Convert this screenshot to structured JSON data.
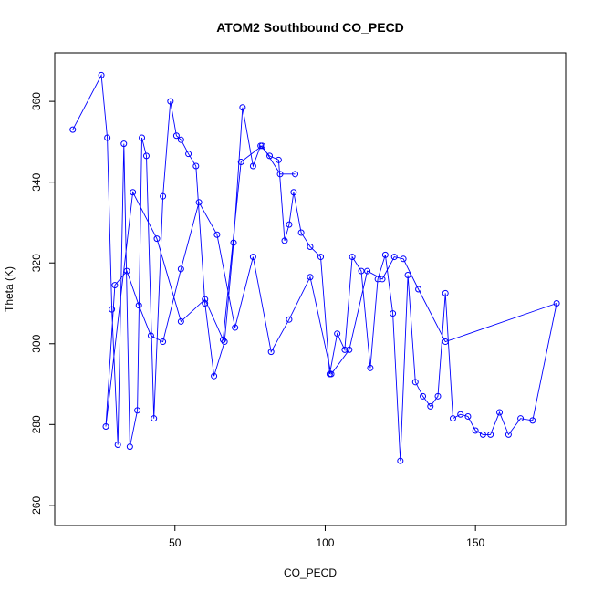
{
  "chart_data": {
    "type": "line",
    "title": "ATOM2 Southbound CO_PECD",
    "xlabel": "CO_PECD",
    "ylabel": "Theta (K)",
    "xlim": [
      10,
      180
    ],
    "ylim": [
      255,
      372
    ],
    "x_ticks": [
      50,
      100,
      150
    ],
    "y_ticks": [
      260,
      280,
      300,
      320,
      340,
      360
    ],
    "x_tick_labels": [
      "50",
      "100",
      "150"
    ],
    "y_tick_labels": [
      "260",
      "280",
      "300",
      "320",
      "340",
      "360"
    ],
    "grid": false,
    "legend": "none",
    "marker": "open-circle",
    "series_color": "#0000ff",
    "series": [
      {
        "x": [
          16.0,
          25.5,
          27.5,
          29.0,
          31.0,
          33.0,
          35.0,
          37.5,
          39.0,
          40.5,
          43.0,
          46.0,
          48.5,
          50.5,
          52.0,
          54.5,
          57.0,
          60.0,
          63.0,
          66.5,
          69.5,
          72.5,
          76.0,
          78.5,
          81.5,
          84.5,
          86.5,
          88.0,
          89.5,
          92.0,
          95.0,
          98.5,
          101.5,
          104.0,
          106.5,
          109.0,
          112.0,
          115.0,
          117.5,
          120.0,
          122.5,
          125.0,
          127.5,
          130.0,
          132.5,
          135.0,
          137.5,
          140.0,
          142.5,
          145.0,
          147.5,
          150.0,
          152.5,
          155.0,
          158.0,
          161.0,
          165.0,
          169.0,
          177.0,
          140.0,
          131.0,
          126.0,
          123.0,
          119.0,
          114.0,
          108.0,
          102.0,
          95.0,
          88.0,
          82.0,
          76.0,
          70.0,
          64.0,
          58.0,
          52.0,
          46.0,
          42.0,
          38.0,
          34.0,
          30.0,
          27.0,
          36.0,
          44.0,
          52.0,
          60.0,
          66.0,
          72.0,
          79.0,
          85.0,
          90.0
        ],
        "y": [
          353.0,
          366.5,
          351.0,
          308.5,
          275.0,
          349.5,
          274.5,
          283.5,
          351.0,
          346.5,
          281.5,
          336.5,
          360.0,
          351.5,
          350.5,
          347.0,
          344.0,
          310.0,
          292.0,
          300.5,
          325.0,
          358.5,
          344.0,
          349.0,
          346.5,
          345.5,
          325.5,
          329.5,
          337.5,
          327.5,
          324.0,
          321.5,
          292.5,
          302.5,
          298.5,
          321.5,
          318.0,
          294.0,
          316.0,
          322.0,
          307.5,
          271.0,
          317.0,
          290.5,
          287.0,
          284.5,
          287.0,
          312.5,
          281.5,
          282.5,
          282.0,
          278.5,
          277.5,
          277.5,
          283.0,
          277.5,
          281.5,
          281.0,
          310.0,
          300.5,
          313.5,
          321.0,
          321.5,
          316.0,
          318.0,
          298.5,
          292.5,
          316.5,
          306.0,
          298.0,
          321.5,
          304.0,
          327.0,
          335.0,
          318.5,
          300.5,
          302.0,
          309.5,
          318.0,
          314.5,
          279.5,
          337.5,
          326.0,
          305.5,
          311.0,
          301.0,
          345.0,
          349.0,
          342.0,
          342.0
        ]
      }
    ]
  }
}
